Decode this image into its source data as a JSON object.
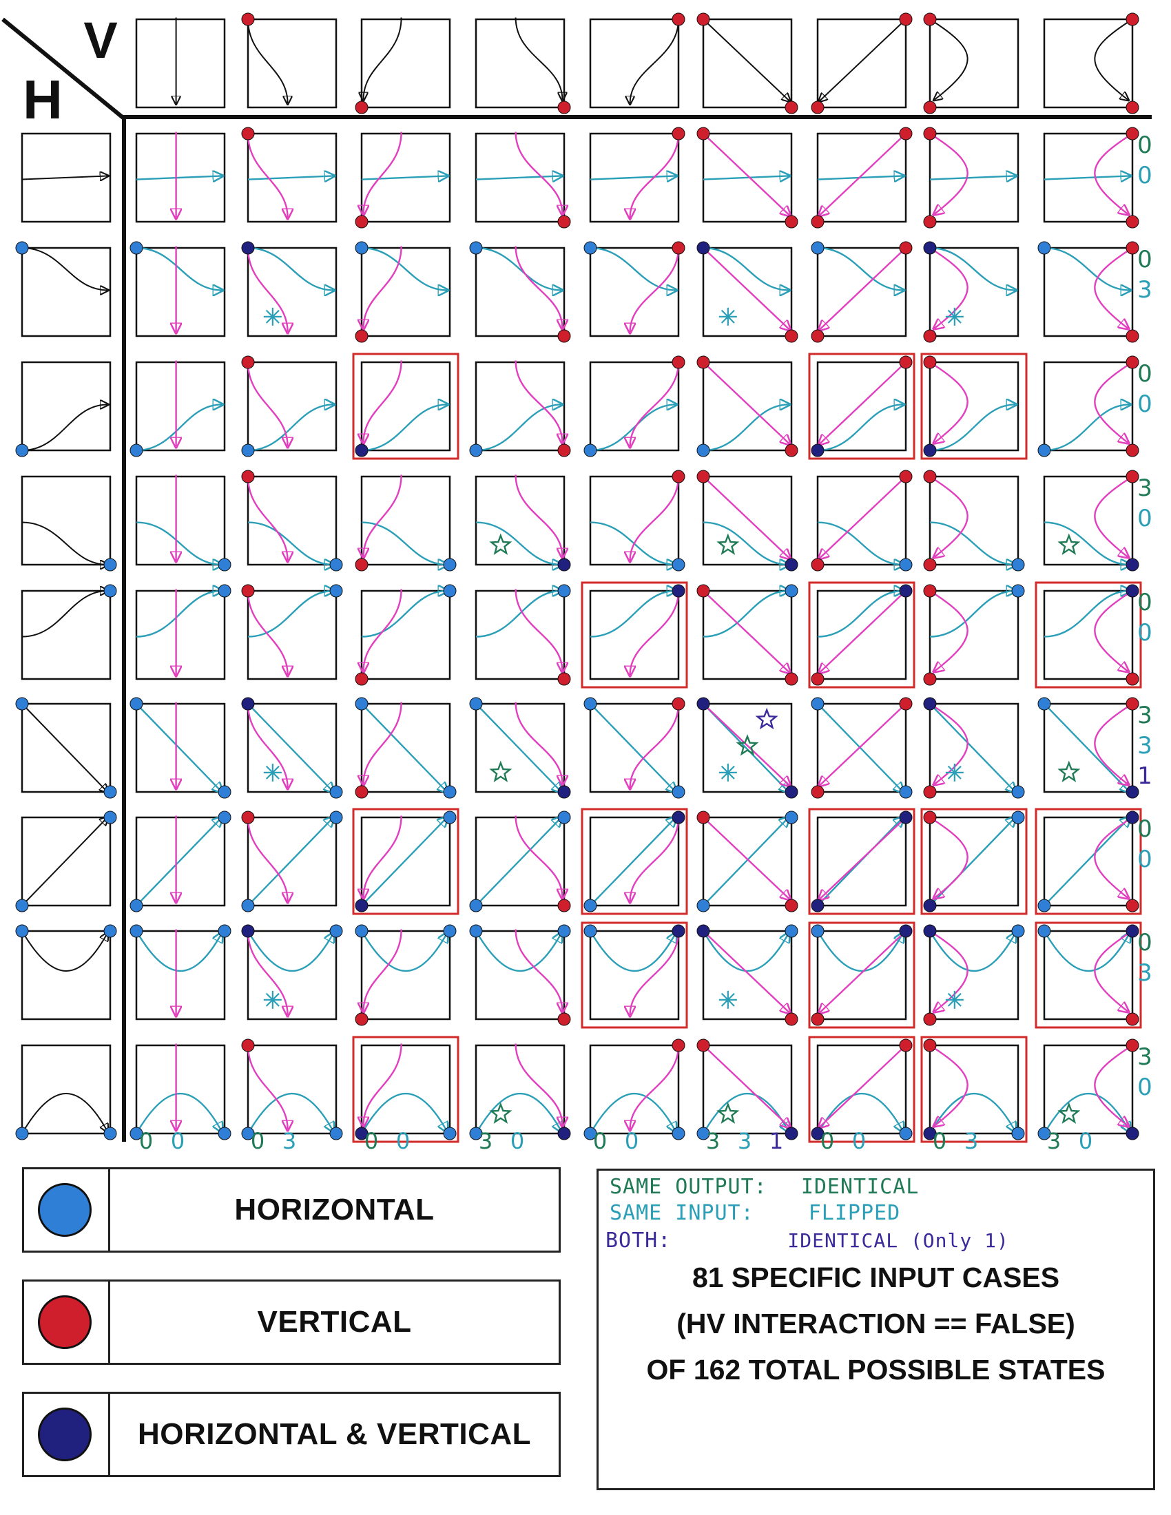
{
  "header": {
    "h_label": "H",
    "v_label": "V"
  },
  "colors": {
    "horizontal": "#2f7fd6",
    "vertical": "#cf1e2c",
    "both": "#20207e",
    "h_path": "#2b9fb7",
    "v_path": "#e23fbf",
    "ink": "#111111",
    "highlight_box": "#d32a2a",
    "star": "#1f7a55"
  },
  "legend": [
    {
      "label": "HORIZONTAL",
      "color": "#2f7fd6"
    },
    {
      "label": "VERTICAL",
      "color": "#cf1e2c"
    },
    {
      "label": "HORIZONTAL & VERTICAL",
      "color": "#20207e"
    }
  ],
  "notes": {
    "line1": {
      "key": "SAME OUTPUT:",
      "value": "IDENTICAL",
      "color": "#1f7a55"
    },
    "line2": {
      "key": "SAME INPUT:",
      "value": "FLIPPED",
      "color": "#2b9fb7"
    },
    "line3": {
      "key": "BOTH:",
      "value": "IDENTICAL (Only 1)",
      "color": "#3a2a9a"
    }
  },
  "summary": {
    "line1": "81 SPECIFIC INPUT CASES",
    "line2": "(HV INTERACTION == FALSE)",
    "line3": "OF 162 TOTAL POSSIBLE STATES"
  },
  "column_headers": [
    "straight-down",
    "top-left-to-bottom-center",
    "top-center-to-bottom-left",
    "top-center-to-bottom-right",
    "top-right-to-bottom-center",
    "top-left-to-bottom-right",
    "top-right-to-bottom-left",
    "top-left-to-bottom-left",
    "top-right-to-bottom-right"
  ],
  "row_headers": [
    "straight-across",
    "top-left-to-middle-right",
    "bottom-left-to-middle-right",
    "middle-left-to-bottom-right",
    "middle-left-to-top-right",
    "top-left-to-bottom-right",
    "bottom-left-to-top-right",
    "top-left-to-top-right",
    "bottom-left-to-bottom-right"
  ],
  "column_counts": [
    [
      "0",
      "0"
    ],
    [
      "0",
      "3"
    ],
    [
      "0",
      "0"
    ],
    [
      "3",
      "0"
    ],
    [
      "0",
      "0"
    ],
    [
      "3",
      "3",
      "1"
    ],
    [
      "0",
      "0"
    ],
    [
      "0",
      "3"
    ],
    [
      "3",
      "0"
    ]
  ],
  "row_counts": [
    [
      "0",
      "0"
    ],
    [
      "0",
      "3"
    ],
    [
      "0",
      "0"
    ],
    [
      "3",
      "0"
    ],
    [
      "0",
      "0"
    ],
    [
      "3",
      "3",
      "1"
    ],
    [
      "0",
      "0"
    ],
    [
      "0",
      "3"
    ],
    [
      "3",
      "0"
    ]
  ],
  "highlighted_cells": [
    [
      2,
      2
    ],
    [
      2,
      6
    ],
    [
      2,
      7
    ],
    [
      4,
      4
    ],
    [
      4,
      6
    ],
    [
      4,
      8
    ],
    [
      6,
      2
    ],
    [
      6,
      4
    ],
    [
      6,
      6
    ],
    [
      6,
      7
    ],
    [
      6,
      8
    ],
    [
      7,
      4
    ],
    [
      7,
      6
    ],
    [
      7,
      8
    ],
    [
      8,
      2
    ],
    [
      8,
      6
    ],
    [
      8,
      7
    ]
  ],
  "marks": [
    {
      "row": 1,
      "col": 1,
      "type": "asterisk",
      "color": "#2b9fb7"
    },
    {
      "row": 1,
      "col": 5,
      "type": "asterisk",
      "color": "#2b9fb7"
    },
    {
      "row": 1,
      "col": 7,
      "type": "asterisk",
      "color": "#2b9fb7"
    },
    {
      "row": 3,
      "col": 3,
      "type": "star",
      "color": "#1f7a55"
    },
    {
      "row": 3,
      "col": 5,
      "type": "star",
      "color": "#1f7a55"
    },
    {
      "row": 3,
      "col": 8,
      "type": "star",
      "color": "#1f7a55"
    },
    {
      "row": 5,
      "col": 1,
      "type": "asterisk",
      "color": "#2b9fb7"
    },
    {
      "row": 5,
      "col": 3,
      "type": "star",
      "color": "#1f7a55"
    },
    {
      "row": 5,
      "col": 5,
      "type": "asterisk",
      "color": "#2b9fb7"
    },
    {
      "row": 5,
      "col": 5,
      "type": "star",
      "color": "#1f7a55"
    },
    {
      "row": 5,
      "col": 5,
      "type": "star",
      "color": "#3a2a9a"
    },
    {
      "row": 5,
      "col": 7,
      "type": "asterisk",
      "color": "#2b9fb7"
    },
    {
      "row": 5,
      "col": 8,
      "type": "star",
      "color": "#1f7a55"
    },
    {
      "row": 7,
      "col": 1,
      "type": "asterisk",
      "color": "#2b9fb7"
    },
    {
      "row": 7,
      "col": 5,
      "type": "asterisk",
      "color": "#2b9fb7"
    },
    {
      "row": 7,
      "col": 7,
      "type": "asterisk",
      "color": "#2b9fb7"
    },
    {
      "row": 8,
      "col": 3,
      "type": "star",
      "color": "#1f7a55"
    },
    {
      "row": 8,
      "col": 5,
      "type": "star",
      "color": "#1f7a55"
    },
    {
      "row": 8,
      "col": 8,
      "type": "star",
      "color": "#1f7a55"
    }
  ]
}
